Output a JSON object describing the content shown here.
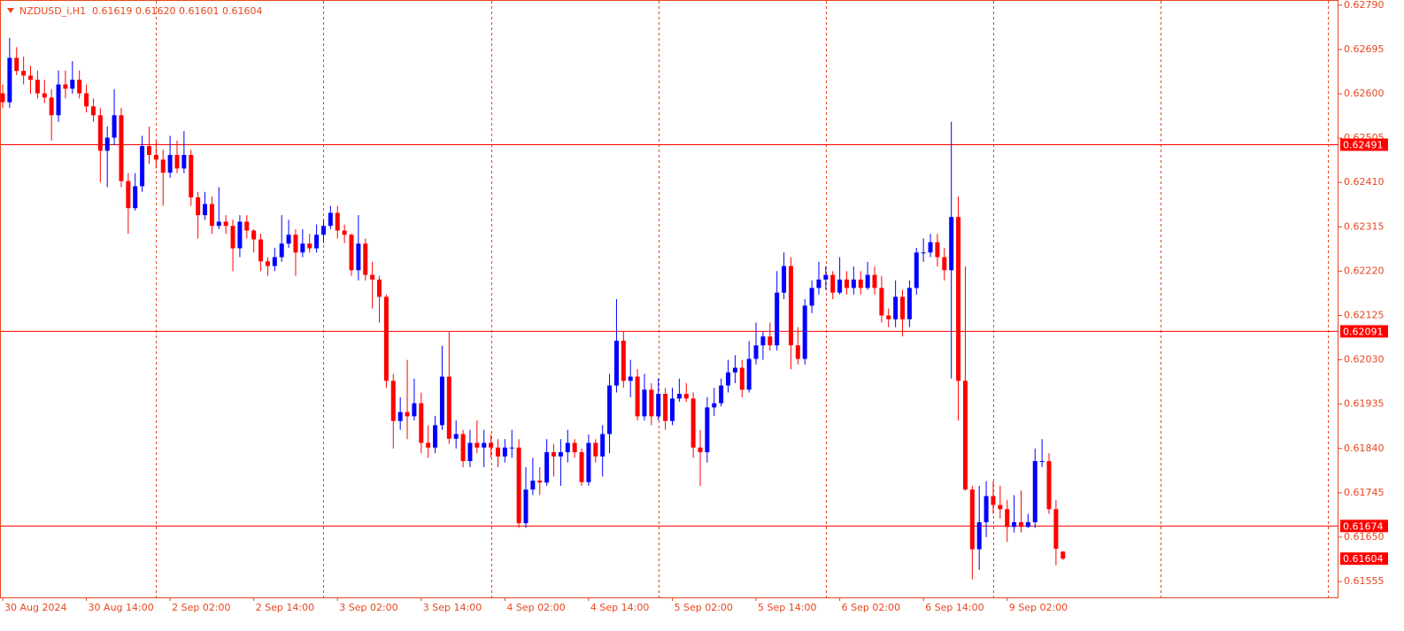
{
  "chart_data": {
    "type": "candlestick",
    "title": "NZDUSD_i,H1",
    "quote": "0.61619 0.61620 0.61601 0.61604",
    "up_color": "#0000ff",
    "down_color": "#ff0000",
    "level_color": "#ff0000",
    "ylim": [
      0.61521,
      0.62801
    ],
    "yticks": [
      {
        "value": 0.6279,
        "label": "0.62790"
      },
      0.62695,
      {
        "value": 0.626,
        "label": "0.62600"
      },
      0.62505,
      {
        "value": 0.6241,
        "label": "0.62410"
      },
      0.62315,
      {
        "value": 0.6222,
        "label": "0.62220"
      },
      0.62125,
      {
        "value": 0.6203,
        "label": "0.62030"
      },
      0.61935,
      {
        "value": 0.6184,
        "label": "0.61840"
      },
      0.61745,
      {
        "value": 0.6165,
        "label": "0.61650"
      },
      0.61555
    ],
    "xticks": [
      {
        "value": 0,
        "label": "30 Aug 2024"
      },
      {
        "value": 12,
        "label": "30 Aug 14:00"
      },
      {
        "value": 24,
        "label": "2 Sep 02:00"
      },
      {
        "value": 36,
        "label": "2 Sep 14:00"
      },
      {
        "value": 48,
        "label": "3 Sep 02:00"
      },
      {
        "value": 60,
        "label": "3 Sep 14:00"
      },
      {
        "value": 72,
        "label": "4 Sep 02:00"
      },
      {
        "value": 84,
        "label": "4 Sep 14:00"
      },
      {
        "value": 96,
        "label": "5 Sep 02:00"
      },
      {
        "value": 108,
        "label": "5 Sep 14:00"
      },
      {
        "value": 120,
        "label": "6 Sep 02:00"
      },
      {
        "value": 132,
        "label": "6 Sep 14:00"
      },
      {
        "value": 144,
        "label": "9 Sep 02:00"
      }
    ],
    "levels": [
      0.62491,
      0.62091,
      0.61674
    ],
    "candles": [
      [
        0.62601,
        0.6262,
        0.6257,
        0.62582
      ],
      [
        0.62582,
        0.6272,
        0.6257,
        0.62677
      ],
      [
        0.62677,
        0.627,
        0.6264,
        0.62649
      ],
      [
        0.62649,
        0.6268,
        0.6262,
        0.62639
      ],
      [
        0.62639,
        0.6266,
        0.626,
        0.6263
      ],
      [
        0.6263,
        0.6265,
        0.6259,
        0.62601
      ],
      [
        0.62601,
        0.6263,
        0.6258,
        0.62592
      ],
      [
        0.62592,
        0.6261,
        0.625,
        0.62554
      ],
      [
        0.62554,
        0.6265,
        0.6254,
        0.6262
      ],
      [
        0.6262,
        0.6265,
        0.6259,
        0.62611
      ],
      [
        0.62611,
        0.6267,
        0.626,
        0.6263
      ],
      [
        0.6263,
        0.6265,
        0.6259,
        0.62601
      ],
      [
        0.62601,
        0.6262,
        0.6256,
        0.62573
      ],
      [
        0.62573,
        0.6259,
        0.6254,
        0.62554
      ],
      [
        0.62554,
        0.6257,
        0.6241,
        0.62478
      ],
      [
        0.62478,
        0.6253,
        0.624,
        0.62506
      ],
      [
        0.62506,
        0.6261,
        0.6249,
        0.62554
      ],
      [
        0.62554,
        0.6257,
        0.624,
        0.62413
      ],
      [
        0.62413,
        0.6243,
        0.623,
        0.62355
      ],
      [
        0.62355,
        0.6243,
        0.6235,
        0.62402
      ],
      [
        0.62402,
        0.6251,
        0.6239,
        0.62488
      ],
      [
        0.62488,
        0.6253,
        0.6245,
        0.62469
      ],
      [
        0.62469,
        0.625,
        0.6244,
        0.62459
      ],
      [
        0.62459,
        0.6248,
        0.6236,
        0.62431
      ],
      [
        0.62431,
        0.6251,
        0.6242,
        0.62469
      ],
      [
        0.62469,
        0.625,
        0.6243,
        0.6244
      ],
      [
        0.6244,
        0.6252,
        0.6243,
        0.62469
      ],
      [
        0.62469,
        0.6248,
        0.6236,
        0.62378
      ],
      [
        0.62378,
        0.6239,
        0.6229,
        0.6234
      ],
      [
        0.6234,
        0.6239,
        0.6233,
        0.62364
      ],
      [
        0.62364,
        0.6238,
        0.623,
        0.62317
      ],
      [
        0.62317,
        0.624,
        0.6231,
        0.62326
      ],
      [
        0.62326,
        0.6234,
        0.623,
        0.62317
      ],
      [
        0.62317,
        0.6233,
        0.6222,
        0.62269
      ],
      [
        0.62269,
        0.6234,
        0.6225,
        0.62326
      ],
      [
        0.62326,
        0.6234,
        0.6229,
        0.62307
      ],
      [
        0.62307,
        0.6231,
        0.6226,
        0.62288
      ],
      [
        0.62288,
        0.623,
        0.6222,
        0.62241
      ],
      [
        0.62241,
        0.6225,
        0.6221,
        0.62231
      ],
      [
        0.62231,
        0.6227,
        0.6222,
        0.6225
      ],
      [
        0.6225,
        0.6234,
        0.6224,
        0.62279
      ],
      [
        0.62279,
        0.6233,
        0.6227,
        0.62298
      ],
      [
        0.62298,
        0.6231,
        0.6221,
        0.6226
      ],
      [
        0.6226,
        0.6231,
        0.6225,
        0.62279
      ],
      [
        0.62279,
        0.623,
        0.6226,
        0.62269
      ],
      [
        0.62269,
        0.6232,
        0.6226,
        0.62298
      ],
      [
        0.62298,
        0.6233,
        0.6228,
        0.62317
      ],
      [
        0.62317,
        0.6236,
        0.6231,
        0.62345
      ],
      [
        0.62345,
        0.6236,
        0.6229,
        0.62307
      ],
      [
        0.62307,
        0.6232,
        0.6228,
        0.62298
      ],
      [
        0.62298,
        0.623,
        0.6221,
        0.62222
      ],
      [
        0.62222,
        0.6234,
        0.622,
        0.62279
      ],
      [
        0.62279,
        0.6229,
        0.622,
        0.62212
      ],
      [
        0.62212,
        0.6224,
        0.6214,
        0.62202
      ],
      [
        0.62202,
        0.6221,
        0.6211,
        0.62165
      ],
      [
        0.62165,
        0.6217,
        0.6197,
        0.61985
      ],
      [
        0.61985,
        0.62,
        0.6184,
        0.61899
      ],
      [
        0.61899,
        0.6195,
        0.6188,
        0.61918
      ],
      [
        0.61918,
        0.6203,
        0.6186,
        0.61909
      ],
      [
        0.61909,
        0.6199,
        0.619,
        0.61937
      ],
      [
        0.61937,
        0.6196,
        0.6183,
        0.61852
      ],
      [
        0.61852,
        0.6189,
        0.6182,
        0.61842
      ],
      [
        0.61842,
        0.6191,
        0.6183,
        0.6189
      ],
      [
        0.6189,
        0.6206,
        0.6188,
        0.61994
      ],
      [
        0.61994,
        0.6209,
        0.6185,
        0.61861
      ],
      [
        0.61861,
        0.619,
        0.6184,
        0.61871
      ],
      [
        0.61871,
        0.6188,
        0.618,
        0.61813
      ],
      [
        0.61813,
        0.6188,
        0.618,
        0.61852
      ],
      [
        0.61852,
        0.619,
        0.6183,
        0.61842
      ],
      [
        0.61842,
        0.6188,
        0.618,
        0.61852
      ],
      [
        0.61852,
        0.6187,
        0.6182,
        0.61842
      ],
      [
        0.61842,
        0.6186,
        0.618,
        0.61823
      ],
      [
        0.61823,
        0.6186,
        0.6181,
        0.61842
      ],
      [
        0.61842,
        0.6188,
        0.6182,
        0.61842
      ],
      [
        0.61842,
        0.6186,
        0.6167,
        0.6168
      ],
      [
        0.6168,
        0.618,
        0.6167,
        0.61752
      ],
      [
        0.61752,
        0.6182,
        0.6174,
        0.61771
      ],
      [
        0.61771,
        0.618,
        0.6174,
        0.61767
      ],
      [
        0.61767,
        0.6186,
        0.6176,
        0.61832
      ],
      [
        0.61832,
        0.6185,
        0.6178,
        0.61823
      ],
      [
        0.61823,
        0.6186,
        0.6176,
        0.61832
      ],
      [
        0.61832,
        0.6188,
        0.6181,
        0.61852
      ],
      [
        0.61852,
        0.6186,
        0.6182,
        0.61832
      ],
      [
        0.61832,
        0.6184,
        0.6176,
        0.61768
      ],
      [
        0.61768,
        0.6187,
        0.6176,
        0.61852
      ],
      [
        0.61852,
        0.6186,
        0.6181,
        0.61823
      ],
      [
        0.61823,
        0.6189,
        0.6178,
        0.61871
      ],
      [
        0.61871,
        0.62,
        0.6183,
        0.61975
      ],
      [
        0.61975,
        0.6216,
        0.6196,
        0.62071
      ],
      [
        0.62071,
        0.6209,
        0.6197,
        0.61985
      ],
      [
        0.61985,
        0.6203,
        0.6195,
        0.61994
      ],
      [
        0.61994,
        0.6201,
        0.619,
        0.61909
      ],
      [
        0.61909,
        0.62,
        0.619,
        0.61966
      ],
      [
        0.61966,
        0.6198,
        0.6189,
        0.61909
      ],
      [
        0.61909,
        0.6199,
        0.619,
        0.61957
      ],
      [
        0.61957,
        0.6197,
        0.6188,
        0.61899
      ],
      [
        0.61899,
        0.6197,
        0.6189,
        0.61947
      ],
      [
        0.61947,
        0.6199,
        0.6194,
        0.61957
      ],
      [
        0.61957,
        0.6198,
        0.6194,
        0.61947
      ],
      [
        0.61947,
        0.6196,
        0.6182,
        0.61842
      ],
      [
        0.61842,
        0.6188,
        0.6176,
        0.61832
      ],
      [
        0.61832,
        0.6195,
        0.6181,
        0.61928
      ],
      [
        0.61928,
        0.6197,
        0.6191,
        0.61937
      ],
      [
        0.61937,
        0.6199,
        0.6193,
        0.61975
      ],
      [
        0.61975,
        0.6203,
        0.6196,
        0.62003
      ],
      [
        0.62003,
        0.6204,
        0.6198,
        0.62013
      ],
      [
        0.62013,
        0.6203,
        0.6195,
        0.61966
      ],
      [
        0.61966,
        0.6207,
        0.6196,
        0.62032
      ],
      [
        0.62032,
        0.6211,
        0.6202,
        0.62061
      ],
      [
        0.62061,
        0.6209,
        0.6203,
        0.6208
      ],
      [
        0.6208,
        0.6211,
        0.6205,
        0.62061
      ],
      [
        0.62061,
        0.6222,
        0.6205,
        0.62174
      ],
      [
        0.62174,
        0.6226,
        0.6216,
        0.62231
      ],
      [
        0.62231,
        0.6225,
        0.6201,
        0.62061
      ],
      [
        0.62061,
        0.621,
        0.6202,
        0.62032
      ],
      [
        0.62032,
        0.6216,
        0.6202,
        0.62146
      ],
      [
        0.62146,
        0.622,
        0.6213,
        0.62184
      ],
      [
        0.62184,
        0.6224,
        0.6217,
        0.62202
      ],
      [
        0.62202,
        0.6223,
        0.6218,
        0.62212
      ],
      [
        0.62212,
        0.6222,
        0.6216,
        0.62174
      ],
      [
        0.62174,
        0.6225,
        0.6217,
        0.62202
      ],
      [
        0.62202,
        0.6222,
        0.6217,
        0.62184
      ],
      [
        0.62184,
        0.6223,
        0.6217,
        0.62202
      ],
      [
        0.62202,
        0.6222,
        0.6217,
        0.62184
      ],
      [
        0.62184,
        0.6224,
        0.6218,
        0.62212
      ],
      [
        0.62212,
        0.6223,
        0.6217,
        0.62184
      ],
      [
        0.62184,
        0.6221,
        0.6211,
        0.62125
      ],
      [
        0.62125,
        0.6214,
        0.621,
        0.62117
      ],
      [
        0.62117,
        0.622,
        0.621,
        0.62165
      ],
      [
        0.62165,
        0.6218,
        0.6208,
        0.62117
      ],
      [
        0.62117,
        0.622,
        0.621,
        0.62184
      ],
      [
        0.62184,
        0.6227,
        0.6217,
        0.6226
      ],
      [
        0.6226,
        0.6229,
        0.6224,
        0.6226
      ],
      [
        0.6226,
        0.623,
        0.6225,
        0.62282
      ],
      [
        0.62282,
        0.623,
        0.6223,
        0.6225
      ],
      [
        0.6225,
        0.6227,
        0.622,
        0.62222
      ],
      [
        0.62222,
        0.6254,
        0.6199,
        0.62336
      ],
      [
        0.62336,
        0.6238,
        0.619,
        0.61985
      ],
      [
        0.61985,
        0.6223,
        0.6175,
        0.61752
      ],
      [
        0.61752,
        0.6176,
        0.6156,
        0.61624
      ],
      [
        0.61624,
        0.6176,
        0.6158,
        0.61682
      ],
      [
        0.61682,
        0.6177,
        0.6165,
        0.61738
      ],
      [
        0.61738,
        0.6177,
        0.617,
        0.61719
      ],
      [
        0.61719,
        0.6176,
        0.6169,
        0.6171
      ],
      [
        0.6171,
        0.6173,
        0.6164,
        0.61672
      ],
      [
        0.61672,
        0.6174,
        0.6166,
        0.61682
      ],
      [
        0.61682,
        0.6175,
        0.6166,
        0.61672
      ],
      [
        0.61672,
        0.617,
        0.6167,
        0.61682
      ],
      [
        0.61682,
        0.6184,
        0.6167,
        0.61813
      ],
      [
        0.61813,
        0.6186,
        0.618,
        0.61813
      ],
      [
        0.61813,
        0.6183,
        0.617,
        0.6171
      ],
      [
        0.6171,
        0.6173,
        0.6159,
        0.61625
      ],
      [
        0.61619,
        0.6162,
        0.61601,
        0.61604
      ]
    ]
  }
}
